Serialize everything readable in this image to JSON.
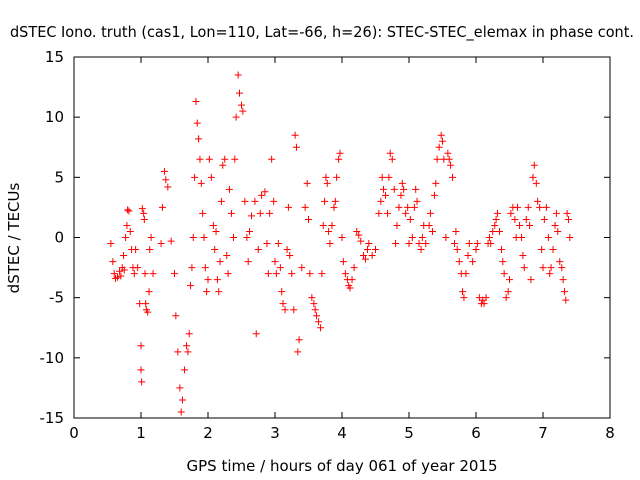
{
  "chart_data": {
    "type": "scatter",
    "title": "dSTEC Iono. truth (cas1, Lon=110, Lat=-66, h=26): STEC-STEC_elemax in phase cont.",
    "xlabel": "GPS time / hours of day 061 of year 2015",
    "ylabel": "dSTEC  / TECUs",
    "xlim": [
      0,
      8
    ],
    "ylim": [
      -15,
      15
    ],
    "xticks": [
      0,
      1,
      2,
      3,
      4,
      5,
      6,
      7,
      8
    ],
    "yticks": [
      -15,
      -10,
      -5,
      0,
      5,
      10,
      15
    ],
    "grid": false,
    "legend": "none",
    "marker": "+",
    "color": "#ff0000",
    "series": [
      {
        "points": [
          [
            0.55,
            -0.5
          ],
          [
            0.58,
            -2.0
          ],
          [
            0.6,
            -3.0
          ],
          [
            0.62,
            -3.4
          ],
          [
            0.65,
            -3.3
          ],
          [
            0.68,
            -2.8
          ],
          [
            0.7,
            -3.2
          ],
          [
            0.72,
            -2.5
          ],
          [
            0.74,
            -1.5
          ],
          [
            0.75,
            -2.7
          ],
          [
            0.77,
            0.0
          ],
          [
            0.79,
            1.0
          ],
          [
            0.8,
            2.3
          ],
          [
            0.82,
            2.2
          ],
          [
            0.84,
            0.5
          ],
          [
            0.86,
            -1.0
          ],
          [
            0.88,
            -2.5
          ],
          [
            0.9,
            -3.0
          ],
          [
            0.92,
            -1.0
          ],
          [
            0.95,
            -2.5
          ],
          [
            0.98,
            -5.5
          ],
          [
            1.0,
            -9.0
          ],
          [
            1.0,
            -11.0
          ],
          [
            1.01,
            -12.0
          ],
          [
            1.02,
            2.4
          ],
          [
            1.04,
            2.0
          ],
          [
            1.05,
            1.5
          ],
          [
            1.06,
            -3.0
          ],
          [
            1.07,
            -5.5
          ],
          [
            1.08,
            -6.0
          ],
          [
            1.1,
            -6.2
          ],
          [
            1.12,
            -4.5
          ],
          [
            1.13,
            -1.0
          ],
          [
            1.15,
            0.0
          ],
          [
            1.18,
            -3.0
          ],
          [
            1.3,
            -0.5
          ],
          [
            1.32,
            2.5
          ],
          [
            1.35,
            5.5
          ],
          [
            1.37,
            4.8
          ],
          [
            1.4,
            4.2
          ],
          [
            1.45,
            -0.3
          ],
          [
            1.5,
            -3.0
          ],
          [
            1.52,
            -6.5
          ],
          [
            1.55,
            -9.5
          ],
          [
            1.58,
            -12.5
          ],
          [
            1.6,
            -14.5
          ],
          [
            1.62,
            -13.5
          ],
          [
            1.65,
            -11.0
          ],
          [
            1.68,
            -9.0
          ],
          [
            1.7,
            -9.5
          ],
          [
            1.72,
            -8.0
          ],
          [
            1.74,
            -4.0
          ],
          [
            1.76,
            -2.5
          ],
          [
            1.78,
            0.0
          ],
          [
            1.8,
            5.0
          ],
          [
            1.82,
            11.3
          ],
          [
            1.84,
            9.5
          ],
          [
            1.86,
            8.2
          ],
          [
            1.88,
            6.5
          ],
          [
            1.9,
            4.5
          ],
          [
            1.92,
            2.0
          ],
          [
            1.94,
            0.0
          ],
          [
            1.96,
            -2.5
          ],
          [
            1.98,
            -4.5
          ],
          [
            2.0,
            -3.5
          ],
          [
            2.02,
            6.5
          ],
          [
            2.05,
            5.0
          ],
          [
            2.08,
            1.0
          ],
          [
            2.1,
            -1.0
          ],
          [
            2.12,
            0.5
          ],
          [
            2.14,
            -3.5
          ],
          [
            2.16,
            -4.5
          ],
          [
            2.18,
            -2.0
          ],
          [
            2.2,
            3.0
          ],
          [
            2.22,
            6.0
          ],
          [
            2.25,
            6.5
          ],
          [
            2.28,
            -1.5
          ],
          [
            2.3,
            -3.0
          ],
          [
            2.32,
            4.0
          ],
          [
            2.35,
            2.0
          ],
          [
            2.38,
            0.0
          ],
          [
            2.4,
            6.5
          ],
          [
            2.42,
            10.0
          ],
          [
            2.45,
            13.5
          ],
          [
            2.47,
            12.0
          ],
          [
            2.5,
            11.0
          ],
          [
            2.52,
            10.5
          ],
          [
            2.55,
            3.0
          ],
          [
            2.58,
            0.0
          ],
          [
            2.6,
            -2.0
          ],
          [
            2.62,
            0.5
          ],
          [
            2.65,
            1.8
          ],
          [
            2.7,
            3.0
          ],
          [
            2.72,
            -8.0
          ],
          [
            2.75,
            -1.0
          ],
          [
            2.78,
            2.0
          ],
          [
            2.8,
            3.5
          ],
          [
            2.85,
            3.8
          ],
          [
            2.88,
            -0.5
          ],
          [
            2.9,
            -3.0
          ],
          [
            2.92,
            2.0
          ],
          [
            2.95,
            6.5
          ],
          [
            2.98,
            3.0
          ],
          [
            3.0,
            -2.0
          ],
          [
            3.02,
            -3.0
          ],
          [
            3.05,
            -0.5
          ],
          [
            3.08,
            -2.5
          ],
          [
            3.1,
            -4.5
          ],
          [
            3.12,
            -5.5
          ],
          [
            3.15,
            -6.0
          ],
          [
            3.18,
            -1.0
          ],
          [
            3.2,
            2.5
          ],
          [
            3.22,
            -1.5
          ],
          [
            3.25,
            -3.0
          ],
          [
            3.28,
            -6.0
          ],
          [
            3.3,
            8.5
          ],
          [
            3.32,
            7.5
          ],
          [
            3.34,
            -9.5
          ],
          [
            3.36,
            -8.5
          ],
          [
            3.4,
            -2.5
          ],
          [
            3.45,
            2.5
          ],
          [
            3.48,
            4.5
          ],
          [
            3.5,
            1.5
          ],
          [
            3.52,
            -3.0
          ],
          [
            3.55,
            -5.0
          ],
          [
            3.58,
            -5.5
          ],
          [
            3.6,
            -6.0
          ],
          [
            3.62,
            -6.5
          ],
          [
            3.65,
            -7.0
          ],
          [
            3.68,
            -7.5
          ],
          [
            3.7,
            -3.0
          ],
          [
            3.72,
            1.0
          ],
          [
            3.74,
            3.0
          ],
          [
            3.76,
            5.0
          ],
          [
            3.78,
            4.5
          ],
          [
            3.8,
            0.5
          ],
          [
            3.82,
            -0.5
          ],
          [
            3.85,
            1.0
          ],
          [
            3.88,
            2.5
          ],
          [
            3.9,
            3.0
          ],
          [
            3.92,
            5.0
          ],
          [
            3.95,
            6.5
          ],
          [
            3.97,
            7.0
          ],
          [
            4.0,
            0.0
          ],
          [
            4.02,
            -2.0
          ],
          [
            4.05,
            -3.0
          ],
          [
            4.08,
            -3.5
          ],
          [
            4.1,
            -4.0
          ],
          [
            4.12,
            -4.2
          ],
          [
            4.15,
            -3.5
          ],
          [
            4.18,
            -2.5
          ],
          [
            4.22,
            0.5
          ],
          [
            4.25,
            0.2
          ],
          [
            4.28,
            -0.3
          ],
          [
            4.32,
            -1.5
          ],
          [
            4.35,
            -1.8
          ],
          [
            4.38,
            -1.0
          ],
          [
            4.4,
            -0.5
          ],
          [
            4.45,
            -1.5
          ],
          [
            4.5,
            -1.0
          ],
          [
            4.55,
            2.0
          ],
          [
            4.58,
            3.0
          ],
          [
            4.6,
            5.0
          ],
          [
            4.62,
            4.0
          ],
          [
            4.65,
            3.5
          ],
          [
            4.68,
            2.0
          ],
          [
            4.7,
            5.0
          ],
          [
            4.72,
            7.0
          ],
          [
            4.75,
            6.5
          ],
          [
            4.78,
            4.0
          ],
          [
            4.8,
            -0.5
          ],
          [
            4.82,
            1.0
          ],
          [
            4.85,
            2.5
          ],
          [
            4.88,
            3.5
          ],
          [
            4.9,
            4.5
          ],
          [
            4.92,
            4.0
          ],
          [
            4.95,
            2.0
          ],
          [
            4.98,
            2.5
          ],
          [
            5.0,
            -0.5
          ],
          [
            5.02,
            1.5
          ],
          [
            5.05,
            0.0
          ],
          [
            5.08,
            2.5
          ],
          [
            5.1,
            4.0
          ],
          [
            5.12,
            3.0
          ],
          [
            5.15,
            -0.5
          ],
          [
            5.18,
            -1.0
          ],
          [
            5.2,
            0.0
          ],
          [
            5.22,
            1.0
          ],
          [
            5.25,
            -0.5
          ],
          [
            5.3,
            1.0
          ],
          [
            5.32,
            2.0
          ],
          [
            5.35,
            0.5
          ],
          [
            5.38,
            3.5
          ],
          [
            5.4,
            4.5
          ],
          [
            5.42,
            6.5
          ],
          [
            5.45,
            7.5
          ],
          [
            5.48,
            8.5
          ],
          [
            5.5,
            8.0
          ],
          [
            5.52,
            6.5
          ],
          [
            5.55,
            0.0
          ],
          [
            5.58,
            7.0
          ],
          [
            5.6,
            6.5
          ],
          [
            5.62,
            6.0
          ],
          [
            5.65,
            5.0
          ],
          [
            5.68,
            -0.5
          ],
          [
            5.7,
            0.5
          ],
          [
            5.72,
            -1.0
          ],
          [
            5.75,
            -2.0
          ],
          [
            5.78,
            -3.0
          ],
          [
            5.8,
            -4.5
          ],
          [
            5.82,
            -5.0
          ],
          [
            5.85,
            -3.0
          ],
          [
            5.88,
            -1.5
          ],
          [
            5.9,
            -0.5
          ],
          [
            5.95,
            -2.0
          ],
          [
            6.0,
            -1.0
          ],
          [
            6.02,
            -0.5
          ],
          [
            6.05,
            -5.0
          ],
          [
            6.08,
            -5.5
          ],
          [
            6.1,
            -5.2
          ],
          [
            6.12,
            -5.5
          ],
          [
            6.15,
            -5.0
          ],
          [
            6.18,
            -0.5
          ],
          [
            6.2,
            0.0
          ],
          [
            6.22,
            -0.5
          ],
          [
            6.25,
            0.5
          ],
          [
            6.28,
            1.0
          ],
          [
            6.3,
            1.5
          ],
          [
            6.32,
            2.0
          ],
          [
            6.35,
            0.5
          ],
          [
            6.38,
            -1.0
          ],
          [
            6.4,
            -2.0
          ],
          [
            6.42,
            -3.0
          ],
          [
            6.45,
            -5.0
          ],
          [
            6.48,
            -4.5
          ],
          [
            6.5,
            -3.5
          ],
          [
            6.52,
            2.0
          ],
          [
            6.55,
            2.5
          ],
          [
            6.58,
            1.5
          ],
          [
            6.6,
            0.0
          ],
          [
            6.62,
            2.5
          ],
          [
            6.65,
            1.0
          ],
          [
            6.68,
            0.0
          ],
          [
            6.7,
            -1.5
          ],
          [
            6.72,
            -2.5
          ],
          [
            6.75,
            1.5
          ],
          [
            6.78,
            2.5
          ],
          [
            6.8,
            1.0
          ],
          [
            6.82,
            -3.5
          ],
          [
            6.85,
            5.0
          ],
          [
            6.87,
            6.0
          ],
          [
            6.9,
            4.5
          ],
          [
            6.92,
            3.0
          ],
          [
            6.95,
            2.5
          ],
          [
            6.98,
            -1.0
          ],
          [
            7.0,
            -2.5
          ],
          [
            7.02,
            1.5
          ],
          [
            7.05,
            2.5
          ],
          [
            7.08,
            0.0
          ],
          [
            7.1,
            -3.0
          ],
          [
            7.12,
            -2.5
          ],
          [
            7.15,
            -1.0
          ],
          [
            7.18,
            1.0
          ],
          [
            7.2,
            2.0
          ],
          [
            7.22,
            0.5
          ],
          [
            7.25,
            -2.0
          ],
          [
            7.28,
            -2.5
          ],
          [
            7.3,
            -3.5
          ],
          [
            7.32,
            -4.5
          ],
          [
            7.34,
            -5.2
          ],
          [
            7.36,
            2.0
          ],
          [
            7.38,
            1.5
          ],
          [
            7.4,
            0.0
          ]
        ]
      }
    ]
  }
}
